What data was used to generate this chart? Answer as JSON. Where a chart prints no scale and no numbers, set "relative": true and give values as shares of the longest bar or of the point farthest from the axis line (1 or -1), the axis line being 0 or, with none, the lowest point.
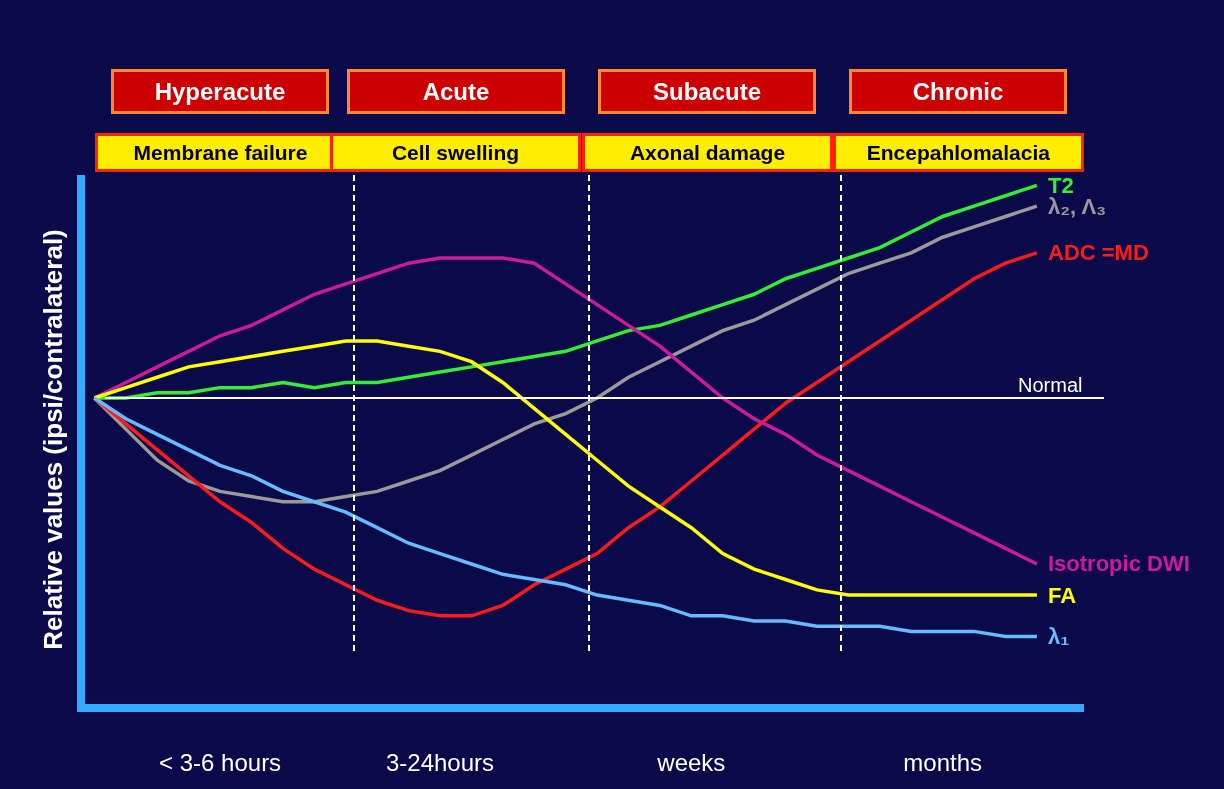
{
  "chart_data": {
    "type": "line",
    "relative": true,
    "ylabel": "Relative values (ipsi/contralateral)",
    "categories": [
      null,
      null,
      null,
      null,
      "< 3-6 hours",
      null,
      null,
      null,
      null,
      null,
      null,
      "3-24hours",
      null,
      null,
      null,
      null,
      null,
      null,
      null,
      "weeks",
      null,
      null,
      null,
      null,
      null,
      null,
      null,
      "months",
      null,
      null,
      null
    ],
    "series": [
      {
        "name": "T2",
        "color": "#33ee33",
        "values": [
          0.59,
          0.59,
          0.6,
          0.6,
          0.61,
          0.61,
          0.62,
          0.61,
          0.62,
          0.62,
          0.63,
          0.64,
          0.65,
          0.66,
          0.67,
          0.68,
          0.7,
          0.72,
          0.73,
          0.75,
          0.77,
          0.79,
          0.82,
          0.84,
          0.86,
          0.88,
          0.91,
          0.94,
          0.96,
          0.98,
          1
        ]
      },
      {
        "name": "λ₂, Λ₃",
        "color": "#9a9a9a",
        "values": [
          0.59,
          0.53,
          0.47,
          0.43,
          0.41,
          0.4,
          0.39,
          0.39,
          0.4,
          0.41,
          0.43,
          0.45,
          0.48,
          0.51,
          0.54,
          0.56,
          0.59,
          0.63,
          0.66,
          0.69,
          0.72,
          0.74,
          0.77,
          0.8,
          0.83,
          0.85,
          0.87,
          0.9,
          0.92,
          0.94,
          0.96
        ]
      },
      {
        "name": "ADC =MD",
        "color": "#ff1a1a",
        "values": [
          0.59,
          0.54,
          0.49,
          0.44,
          0.39,
          0.35,
          0.3,
          0.26,
          0.23,
          0.2,
          0.18,
          0.17,
          0.17,
          0.19,
          0.23,
          0.26,
          0.29,
          0.34,
          0.38,
          0.43,
          0.48,
          0.53,
          0.58,
          0.62,
          0.66,
          0.7,
          0.74,
          0.78,
          0.82,
          0.85,
          0.87
        ]
      },
      {
        "name": "Isotropic DWI",
        "color": "#cc1a99",
        "values": [
          0.59,
          0.62,
          0.65,
          0.68,
          0.71,
          0.73,
          0.76,
          0.79,
          0.81,
          0.83,
          0.85,
          0.86,
          0.86,
          0.86,
          0.85,
          0.81,
          0.77,
          0.73,
          0.69,
          0.64,
          0.59,
          0.55,
          0.52,
          0.48,
          0.45,
          0.42,
          0.39,
          0.36,
          0.33,
          0.3,
          0.27
        ]
      },
      {
        "name": "FA",
        "color": "#ffff00",
        "values": [
          0.59,
          0.61,
          0.63,
          0.65,
          0.66,
          0.67,
          0.68,
          0.69,
          0.7,
          0.7,
          0.69,
          0.68,
          0.66,
          0.62,
          0.57,
          0.52,
          0.47,
          0.42,
          0.38,
          0.34,
          0.29,
          0.26,
          0.24,
          0.22,
          0.21,
          0.21,
          0.21,
          0.21,
          0.21,
          0.21,
          0.21
        ]
      },
      {
        "name": "λ₁",
        "color": "#66bbff",
        "values": [
          0.59,
          0.55,
          0.52,
          0.49,
          0.46,
          0.44,
          0.41,
          0.39,
          0.37,
          0.34,
          0.31,
          0.29,
          0.27,
          0.25,
          0.24,
          0.23,
          0.21,
          0.2,
          0.19,
          0.17,
          0.17,
          0.16,
          0.16,
          0.15,
          0.15,
          0.15,
          0.14,
          0.14,
          0.14,
          0.13,
          0.13
        ]
      }
    ],
    "ref_lines": [
      {
        "axis": "y",
        "value": 0.59,
        "label": "Normal",
        "color": "#ffffff",
        "line_style": "solid"
      }
    ],
    "annotations": [
      "Hyperacute",
      "Acute",
      "Subacute",
      "Chronic",
      "Membrane failure",
      "Cell swelling",
      "Axonal damage",
      "Encepahlomalacia"
    ],
    "legend": false,
    "marker": "none",
    "line_style": "solid"
  }
}
